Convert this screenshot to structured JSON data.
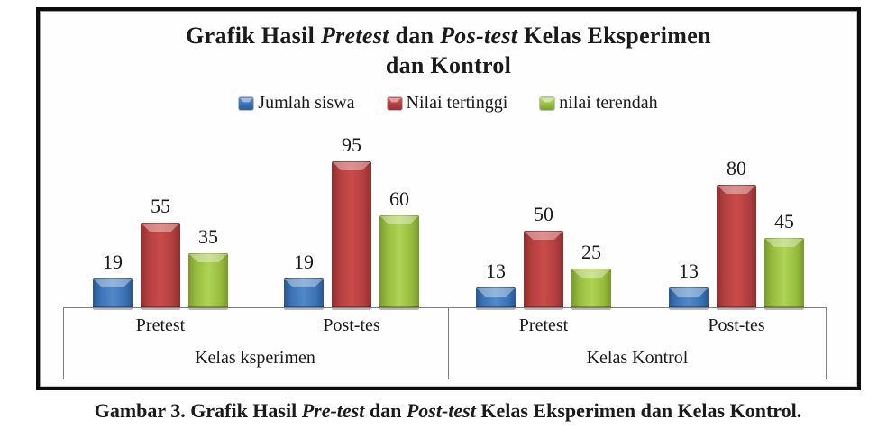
{
  "figure": {
    "title": {
      "l1a": "Grafik Hasil ",
      "l1_italic1": "Pretest",
      "l1b": " dan ",
      "l1_italic2": "Pos-test",
      "l1c": " Kelas Eksperimen",
      "l2": "dan Kontrol"
    },
    "caption": {
      "c1": "Gambar 3. Grafik Hasil ",
      "c_italic1": "Pre-test",
      "c2": " dan ",
      "c_italic2": "Post-test",
      "c3": " Kelas Eksperimen dan Kelas Kontrol."
    }
  },
  "chart_data": {
    "type": "bar",
    "title": "Grafik Hasil Pretest dan Pos-test Kelas Eksperimen dan Kontrol",
    "legend_position": "top-center",
    "grid": false,
    "data_labels": true,
    "ylim": [
      0,
      100
    ],
    "categories": [
      "Pretest",
      "Post-tes",
      "Pretest",
      "Post-tes"
    ],
    "group_labels": [
      "Kelas ksperimen",
      "Kelas Kontrol"
    ],
    "series": [
      {
        "name": "Jumlah siswa",
        "color": "#3b71b5",
        "values": [
          19,
          19,
          13,
          13
        ]
      },
      {
        "name": "Nilai tertinggi",
        "color": "#b23e3f",
        "values": [
          55,
          95,
          50,
          80
        ]
      },
      {
        "name": "nilai terendah",
        "color": "#9abf3f",
        "values": [
          35,
          60,
          25,
          45
        ]
      }
    ]
  }
}
